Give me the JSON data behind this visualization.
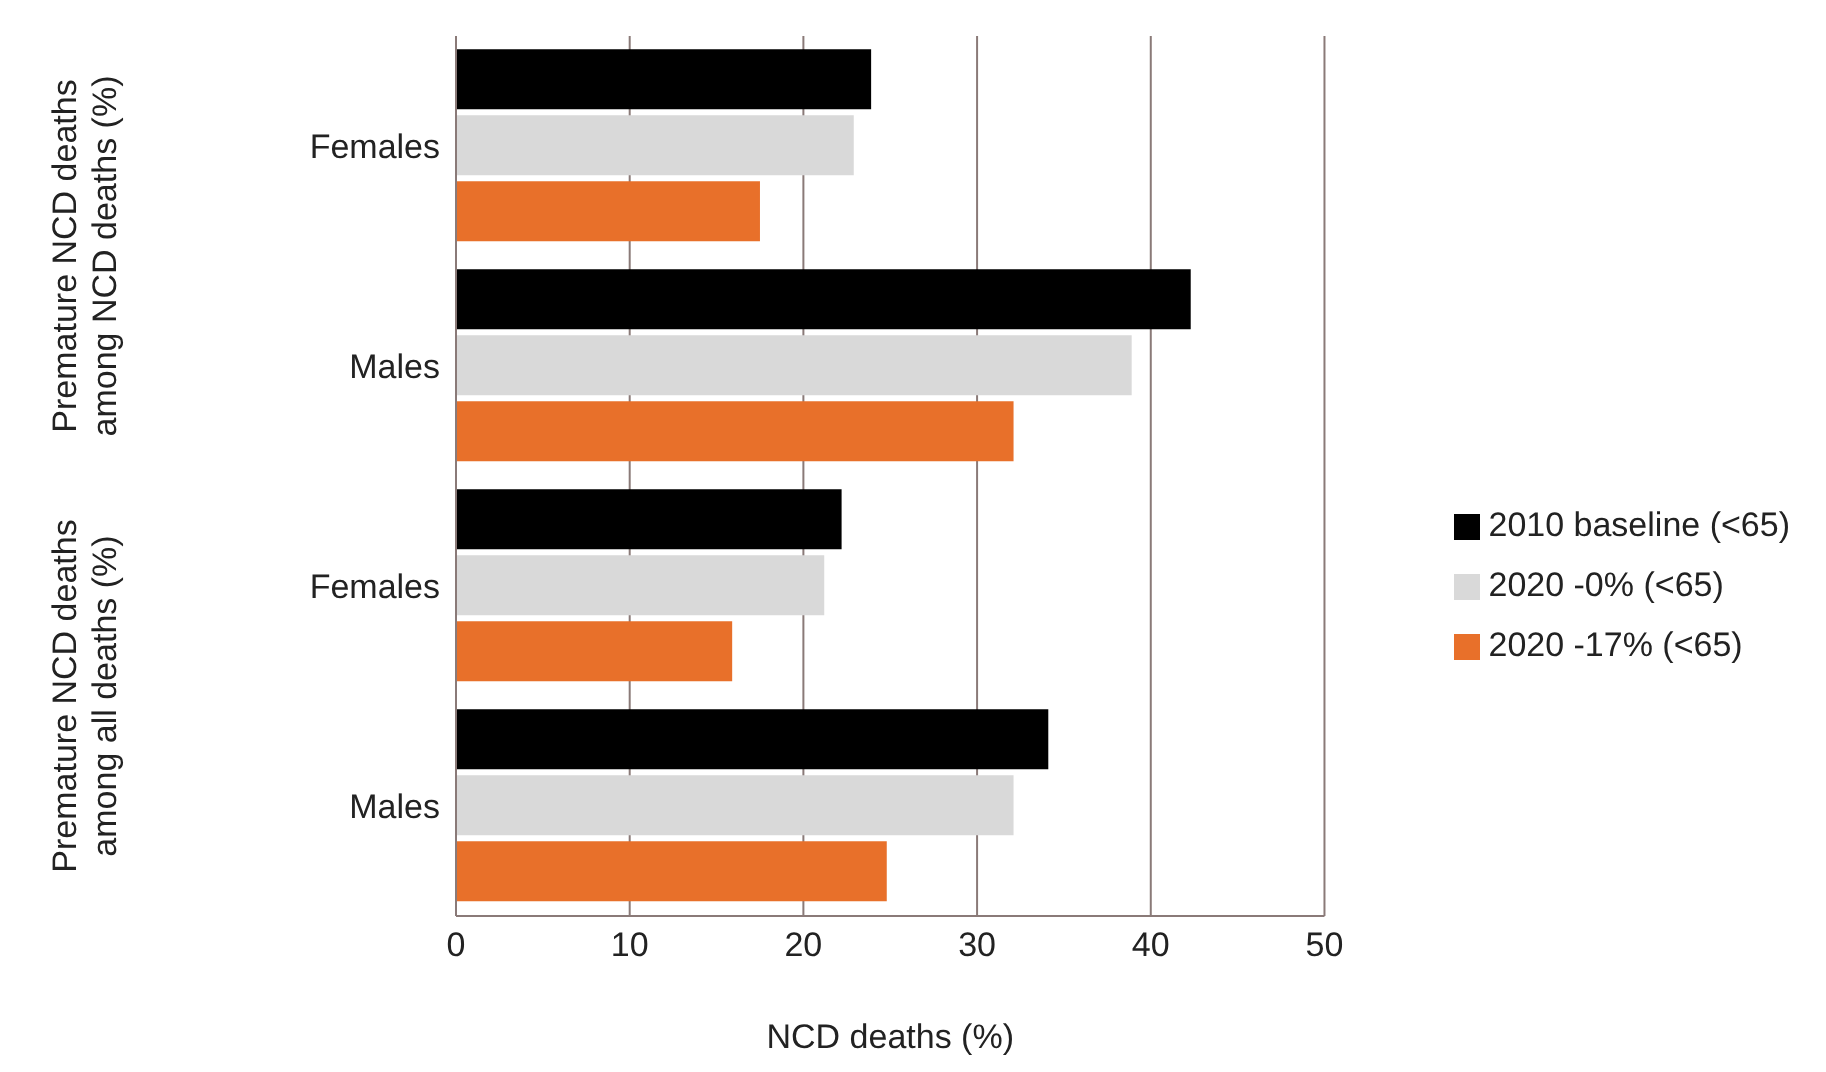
{
  "chart_data": {
    "type": "bar",
    "orientation": "horizontal",
    "xlabel": "NCD deaths (%)",
    "categories": [
      "Females",
      "Males",
      "Females",
      "Males"
    ],
    "series": [
      {
        "name": "2010 baseline (<65)",
        "color": "#000000",
        "values": [
          23.9,
          42.3,
          22.2,
          34.1
        ]
      },
      {
        "name": "2020 -0% (<65)",
        "color": "#d9d9d9",
        "values": [
          22.9,
          38.9,
          21.2,
          32.1
        ]
      },
      {
        "name": "2020 -17% (<65)",
        "color": "#e8702a",
        "values": [
          17.5,
          32.1,
          15.9,
          24.8
        ]
      }
    ],
    "xlim": [
      0,
      50
    ],
    "xticks": [
      0,
      10,
      20,
      30,
      40,
      50
    ],
    "grid": "x",
    "legend": "right",
    "annotations": [
      "Premature NCD deaths among NCD deaths (%)",
      "Premature NCD deaths among all deaths (%)"
    ]
  }
}
